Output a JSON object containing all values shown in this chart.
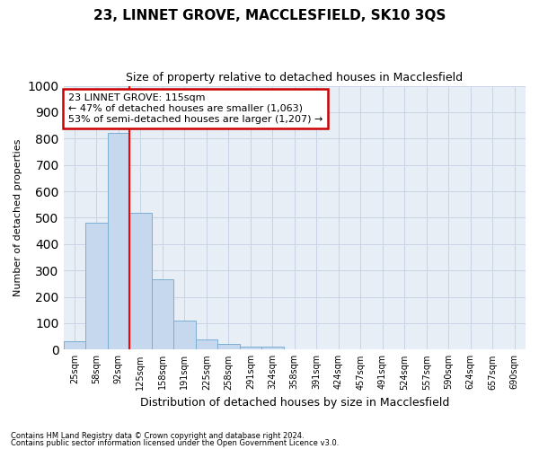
{
  "title": "23, LINNET GROVE, MACCLESFIELD, SK10 3QS",
  "subtitle": "Size of property relative to detached houses in Macclesfield",
  "xlabel": "Distribution of detached houses by size in Macclesfield",
  "ylabel": "Number of detached properties",
  "bar_labels": [
    "25sqm",
    "58sqm",
    "92sqm",
    "125sqm",
    "158sqm",
    "191sqm",
    "225sqm",
    "258sqm",
    "291sqm",
    "324sqm",
    "358sqm",
    "391sqm",
    "424sqm",
    "457sqm",
    "491sqm",
    "524sqm",
    "557sqm",
    "590sqm",
    "624sqm",
    "657sqm",
    "690sqm"
  ],
  "bar_heights": [
    30,
    480,
    820,
    520,
    265,
    110,
    40,
    20,
    10,
    10,
    0,
    0,
    0,
    0,
    0,
    0,
    0,
    0,
    0,
    0,
    0
  ],
  "bar_color": "#c5d8ee",
  "bar_edge_color": "#7bafd4",
  "ylim": [
    0,
    1000
  ],
  "yticks": [
    0,
    100,
    200,
    300,
    400,
    500,
    600,
    700,
    800,
    900,
    1000
  ],
  "red_line_x": 3.0,
  "annotation_text": "23 LINNET GROVE: 115sqm\n← 47% of detached houses are smaller (1,063)\n53% of semi-detached houses are larger (1,207) →",
  "annotation_box_color": "#ffffff",
  "annotation_box_edge": "#cc0000",
  "grid_color": "#c8d4e4",
  "plot_bg_color": "#e8eef6",
  "background_color": "#ffffff",
  "footnote1": "Contains HM Land Registry data © Crown copyright and database right 2024.",
  "footnote2": "Contains public sector information licensed under the Open Government Licence v3.0.",
  "title_fontsize": 11,
  "subtitle_fontsize": 9,
  "ylabel_fontsize": 8,
  "xlabel_fontsize": 9
}
